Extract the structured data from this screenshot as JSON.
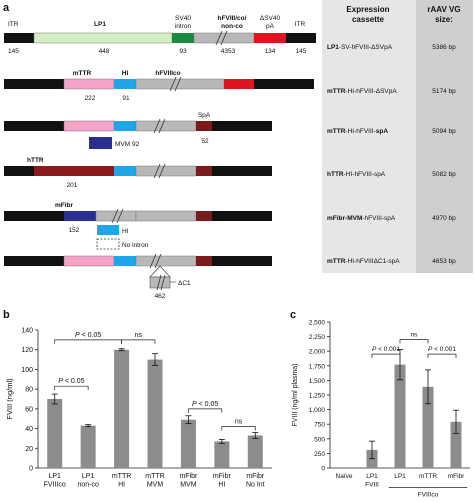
{
  "panel_a": {
    "label": "a",
    "table_header": {
      "cassette": [
        "Expression",
        "cassette"
      ],
      "size": [
        "rAAV VG",
        "size:"
      ]
    },
    "top_labels": {
      "itr_left": "ITR",
      "lp1": "LP1",
      "sv40": [
        "SV40",
        "intron"
      ],
      "hfviii": [
        "hFVIII/co/",
        "non-co"
      ],
      "dsv40": [
        "ΔSV40",
        "pA"
      ],
      "itr_right": "ITR"
    },
    "top_numbers": {
      "itr_left": "145",
      "lp1": "448",
      "sv40": "93",
      "hfviii": "4353",
      "dsv40": "134",
      "itr_right": "145"
    },
    "row2_labels": {
      "mttr": "mTTR",
      "hi": "HI",
      "hfviiico": "hFVIIIco",
      "n_mttr": "222",
      "n_hi": "91"
    },
    "row3_labels": {
      "spa": "SpA",
      "mvm": "MVM 92",
      "n_spa": "52"
    },
    "row4_labels": {
      "httr": "hTTR",
      "n_httr": "201"
    },
    "row5_labels": {
      "mfibr": "mFibr",
      "n_mfibr": "152",
      "hi": "HI",
      "no_intron": "No intron"
    },
    "row6_labels": {
      "dc1": "ΔC1",
      "n_dc1": "462"
    },
    "rows": [
      {
        "bold": "LP1",
        "rest": "-SV-hFVIII-ΔSVpA",
        "size": "5386 bp"
      },
      {
        "bold": "mTTR",
        "rest": "-HI-hFVIII-ΔSVpA",
        "size": "5174 bp"
      },
      {
        "bold": "mTTR",
        "rest": "-HI-hFVIII-",
        "bold2": "spA",
        "size": "5094 bp"
      },
      {
        "bold": "hTTR",
        "rest": "-HI-hFVIII-spA",
        "size": "5082 bp"
      },
      {
        "bold": "mFibr-MVM",
        "rest": "-hFVIII-spA",
        "size": "4970 bp"
      },
      {
        "bold": "mTTR",
        "rest": "-HI-hFVIIIΔC1-spA",
        "size": "4653 bp"
      }
    ],
    "colors": {
      "itr": "#111111",
      "lp1": "#d5efc4",
      "sv40": "#1a8a3f",
      "hfviii": "#b8b8b8",
      "pa": "#e0141e",
      "mttr": "#f5a3c7",
      "hi": "#1ea6e8",
      "mvm": "#2a2f8f",
      "spa": "#7a1a1a",
      "httr": "#8c1a1a",
      "table_bg": "#e6e6e6",
      "table_col": "#cfcfcf"
    }
  },
  "chart_data": [
    {
      "panel": "b",
      "type": "bar",
      "ylabel": "FVIII (ng/ml)",
      "ylim": [
        0,
        140
      ],
      "yticks": [
        0,
        20,
        40,
        60,
        80,
        100,
        120,
        140
      ],
      "categories": [
        [
          "LP1",
          "FVIIIco"
        ],
        [
          "LP1",
          "non-co"
        ],
        [
          "mTTR",
          "HI"
        ],
        [
          "mTTR",
          "MVM"
        ],
        [
          "mFibr",
          "MVM"
        ],
        [
          "mFibr",
          "HI"
        ],
        [
          "mFibr",
          "No Int"
        ]
      ],
      "values": [
        70,
        43,
        120,
        110,
        49,
        27,
        33
      ],
      "errors": [
        5,
        1,
        1,
        6,
        4,
        2,
        3
      ],
      "annotations": [
        {
          "text": "P < 0.05",
          "from": 0,
          "to": 2,
          "level": 130
        },
        {
          "text": "ns",
          "from": 2,
          "to": 3,
          "level": 130
        },
        {
          "text": "P < 0.05",
          "from": 0,
          "to": 1,
          "level": 83
        },
        {
          "text": "P < 0.05",
          "from": 4,
          "to": 5,
          "level": 60
        },
        {
          "text": "ns",
          "from": 5,
          "to": 6,
          "level": 42
        }
      ]
    },
    {
      "panel": "c",
      "type": "bar",
      "ylabel": "FVIII (ng/ml plasma)",
      "ylim": [
        0,
        2500
      ],
      "yticks": [
        0,
        250,
        500,
        750,
        1000,
        1250,
        1500,
        1750,
        2000,
        2250,
        2500
      ],
      "ytick_labels": [
        "0",
        "250",
        "500",
        "750",
        "1,000",
        "1,250",
        "1,500",
        "1,750",
        "2,000",
        "2,250",
        "2,500"
      ],
      "categories": [
        [
          "Naïve"
        ],
        [
          "LP1",
          "FVIII"
        ],
        [
          "LP1"
        ],
        [
          "mTTR"
        ],
        [
          "mFibr"
        ]
      ],
      "group_label": {
        "text": "FVIIIco",
        "from": 2,
        "to": 4
      },
      "values": [
        0,
        310,
        1770,
        1390,
        790
      ],
      "errors": [
        0,
        150,
        260,
        290,
        200
      ],
      "annotations": [
        {
          "text": "ns",
          "from": 2,
          "to": 3,
          "level": 2200
        },
        {
          "text": "P < 0.001",
          "from": 1,
          "to": 2,
          "level": 1950
        },
        {
          "text": "P < 0.001",
          "from": 3,
          "to": 4,
          "level": 1950
        }
      ]
    }
  ]
}
